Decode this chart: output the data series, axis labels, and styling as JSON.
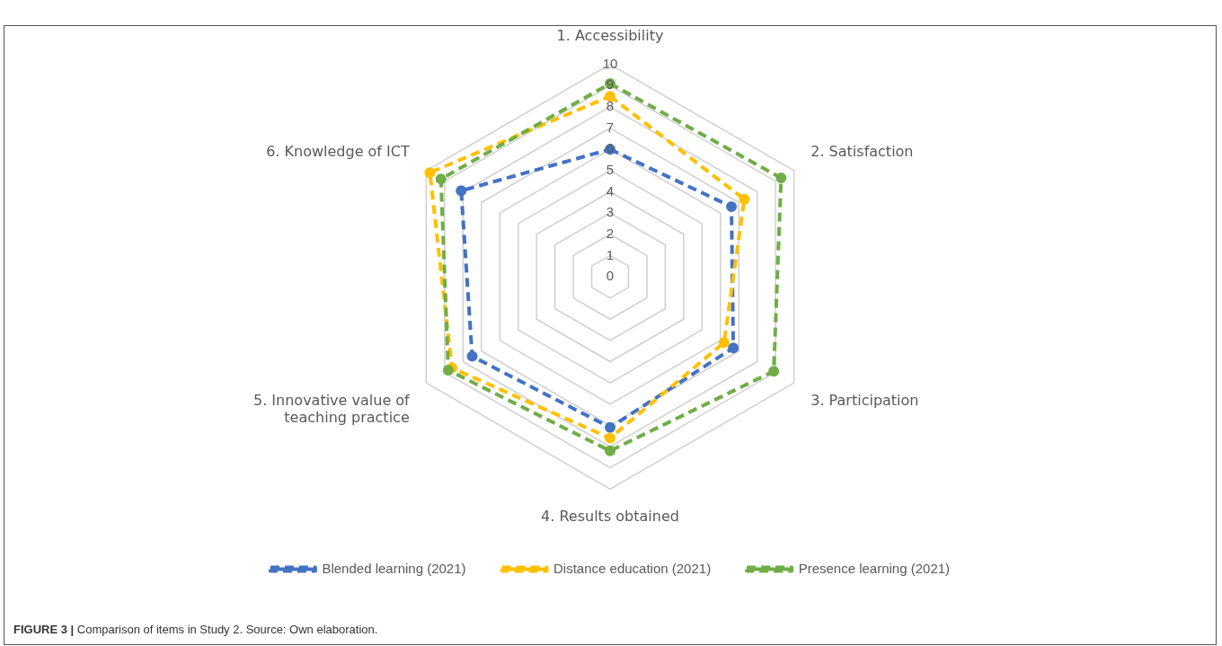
{
  "chart_data": {
    "type": "radar",
    "categories": [
      "1. Accessibility",
      "2. Satisfaction",
      "3. Participation",
      "4. Results obtained",
      "5. Innovative value of teaching practice",
      "6. Knowledge of ICT"
    ],
    "series": [
      {
        "name": "Blended learning (2021)",
        "color": "#4472c4",
        "values": [
          6,
          6.6,
          6.7,
          7.1,
          7.5,
          8.1
        ]
      },
      {
        "name": "Distance education (2021)",
        "color": "#ffc000",
        "values": [
          8.5,
          7.3,
          6.2,
          7.6,
          8.6,
          9.8
        ]
      },
      {
        "name": "Presence learning (2021)",
        "color": "#70ad47",
        "values": [
          9.1,
          9.3,
          8.9,
          8.2,
          8.8,
          9.2
        ]
      }
    ],
    "ylim": [
      0,
      10
    ],
    "yticks": [
      0,
      1,
      2,
      3,
      4,
      5,
      6,
      7,
      8,
      9,
      10
    ],
    "grid": true,
    "legend": "bottom",
    "marker": "circle",
    "line_style": "dashed",
    "annotations": [
      "FIGURE 3 | Comparison of items in Study 2. Source: Own elaboration."
    ]
  }
}
